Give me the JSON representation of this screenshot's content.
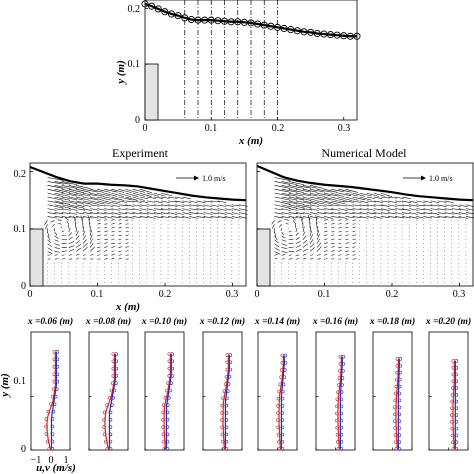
{
  "chart_data": [
    {
      "type": "line",
      "id": "top",
      "xlabel": "x (m)",
      "ylabel": "y (m)",
      "xlim": [
        0,
        0.32
      ],
      "ylim": [
        0,
        0.215
      ],
      "xticks": [
        "0",
        "0.1",
        "0.2",
        "0.3"
      ],
      "yticks": [
        "0",
        "0.1",
        "0.2"
      ],
      "block": {
        "x0": 0,
        "x1": 0.02,
        "y1": 0.1
      },
      "vlines_x": [
        0.06,
        0.08,
        0.1,
        0.12,
        0.14,
        0.16,
        0.18,
        0.2
      ],
      "series": [
        {
          "marker": "circle",
          "x": [
            0.0,
            0.01,
            0.02,
            0.03,
            0.04,
            0.05,
            0.06,
            0.07,
            0.08,
            0.09,
            0.1,
            0.11,
            0.12,
            0.13,
            0.14,
            0.15,
            0.16,
            0.17,
            0.18,
            0.19,
            0.2,
            0.21,
            0.22,
            0.23,
            0.24,
            0.25,
            0.26,
            0.27,
            0.28,
            0.29,
            0.3,
            0.31,
            0.32
          ],
          "y": [
            0.208,
            0.204,
            0.199,
            0.194,
            0.19,
            0.187,
            0.183,
            0.18,
            0.179,
            0.179,
            0.179,
            0.178,
            0.177,
            0.176,
            0.176,
            0.175,
            0.174,
            0.172,
            0.17,
            0.168,
            0.166,
            0.164,
            0.162,
            0.16,
            0.158,
            0.157,
            0.155,
            0.154,
            0.153,
            0.152,
            0.151,
            0.15,
            0.15
          ]
        }
      ]
    },
    {
      "type": "quiver",
      "id": "experiment",
      "title": "Experiment",
      "xlabel": "x (m)",
      "xlim": [
        0,
        0.32
      ],
      "ylim": [
        0,
        0.215
      ],
      "xticks": [
        "0",
        "0.1",
        "0.2",
        "0.3"
      ],
      "yticks": [
        "0",
        "0.1",
        "0.2"
      ],
      "reference": "1.0 m/s",
      "surface": {
        "x": [
          0.0,
          0.02,
          0.04,
          0.06,
          0.08,
          0.1,
          0.12,
          0.14,
          0.16,
          0.18,
          0.2,
          0.22,
          0.24,
          0.26,
          0.28,
          0.3,
          0.32
        ],
        "y": [
          0.208,
          0.199,
          0.19,
          0.183,
          0.179,
          0.179,
          0.177,
          0.176,
          0.174,
          0.17,
          0.166,
          0.162,
          0.158,
          0.155,
          0.153,
          0.151,
          0.15
        ]
      }
    },
    {
      "type": "quiver",
      "id": "numerical",
      "title": "Numerical Model",
      "xlim": [
        0,
        0.32
      ],
      "ylim": [
        0,
        0.215
      ],
      "xticks": [
        "0",
        "0.1",
        "0.2",
        "0.3"
      ],
      "yticks": [
        "0",
        "0.1",
        "0.2"
      ],
      "reference": "1.0 m/s",
      "surface": {
        "x": [
          0.0,
          0.02,
          0.04,
          0.06,
          0.08,
          0.1,
          0.12,
          0.14,
          0.16,
          0.18,
          0.2,
          0.22,
          0.24,
          0.26,
          0.28,
          0.3,
          0.32
        ],
        "y": [
          0.21,
          0.2,
          0.19,
          0.184,
          0.18,
          0.177,
          0.175,
          0.173,
          0.17,
          0.167,
          0.164,
          0.16,
          0.157,
          0.155,
          0.153,
          0.151,
          0.15
        ]
      }
    },
    {
      "type": "profiles",
      "id": "profiles",
      "ylabel": "y (m)",
      "xlabel": "u,v (m/s)",
      "xlim": [
        -1,
        1
      ],
      "ylim": [
        0,
        0.22
      ],
      "yticks": [
        "0",
        "0.1"
      ],
      "xticks": [
        "−1",
        "0",
        "1"
      ],
      "panels": [
        {
          "title": "x =0.06 (m)",
          "top": 0.183,
          "lower_u": 0.0,
          "upper_u": 0.25,
          "knee_y": 0.09
        },
        {
          "title": "x =0.08 (m)",
          "top": 0.179,
          "lower_u": 0.0,
          "upper_u": 0.3,
          "knee_y": 0.1
        },
        {
          "title": "x =0.10 (m)",
          "top": 0.179,
          "lower_u": 0.05,
          "upper_u": 0.3,
          "knee_y": 0.11
        },
        {
          "title": "x =0.12 (m)",
          "top": 0.177,
          "lower_u": 0.1,
          "upper_u": 0.3,
          "knee_y": 0.12
        },
        {
          "title": "x =0.14 (m)",
          "top": 0.176,
          "lower_u": 0.15,
          "upper_u": 0.3,
          "knee_y": 0.13
        },
        {
          "title": "x =0.16 (m)",
          "top": 0.174,
          "lower_u": 0.2,
          "upper_u": 0.3,
          "knee_y": 0.13
        },
        {
          "title": "x =0.18 (m)",
          "top": 0.17,
          "lower_u": 0.25,
          "upper_u": 0.3,
          "knee_y": 0.13
        },
        {
          "title": "x =0.20 (m)",
          "top": 0.166,
          "lower_u": 0.3,
          "upper_u": 0.3,
          "knee_y": 0.13
        }
      ],
      "colors": {
        "u": "#cc2a2a",
        "v": "#2a2ab4"
      }
    }
  ]
}
